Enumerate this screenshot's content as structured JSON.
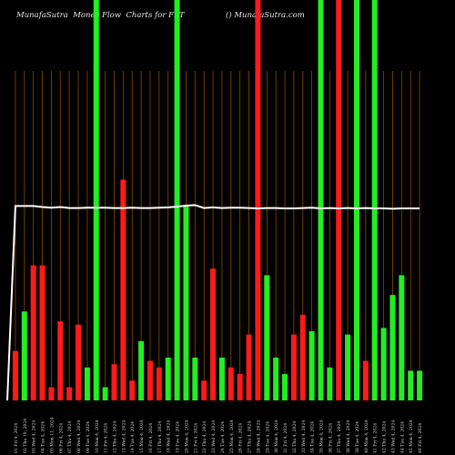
{
  "header": {
    "title": "MunafaSutra  Money Flow  Charts for FFT",
    "watermark": "() MunafaSutra.com"
  },
  "chart_data": {
    "type": "bar",
    "title": "Money Flow Charts for FFT",
    "ylim": [
      0,
      100
    ],
    "colors": {
      "green": "#22ee22",
      "red": "#ff1a1a",
      "line": "#ffffff",
      "grid": "#8b4a00"
    },
    "categories": [
      "01 Fri 4, 2024",
      "02 Thu 10, 2024",
      "03 Wed 4, 2024",
      "04 Tue 4, 2024",
      "05 Mon 11, 2024",
      "06 Fri 4, 2024",
      "07 Thu 4, 2024",
      "08 Wed 4, 2024",
      "09 Tue 4, 2024",
      "10 Mon 4, 2024",
      "11 Fri 4, 2024",
      "12 Thu 4, 2024",
      "13 Wed 4, 2024",
      "14 Tue 4, 2024",
      "15 Mon 4, 2024",
      "16 Fri 4, 2024",
      "17 Thu 4, 2024",
      "18 Wed 4, 2024",
      "19 Tue 4, 2024",
      "20 Mon 4, 2024",
      "21 Fri 4, 2024",
      "22 Thu 4, 2024",
      "23 Wed 4, 2024",
      "24 Tue 4, 2024",
      "25 Mon 4, 2024",
      "26 Fri 4, 2024",
      "27 Thu 4, 2024",
      "28 Wed 4, 2024",
      "29 Tue 4, 2024",
      "30 Mon 4, 2024",
      "31 Fri 4, 2024",
      "32 Thu 4, 2024",
      "33 Wed 4, 2024",
      "34 Tue 4, 2024",
      "35 Mon 4, 2024",
      "36 Fri 4, 2024",
      "37 Thu 4, 2024",
      "38 Wed 4, 2024",
      "39 Tue 4, 2024",
      "40 Mon 4, 2024",
      "41 Fri 4, 2024",
      "42 Thu 4, 2024",
      "43 Wed 4, 2024",
      "44 Tue 4, 2024",
      "45 Mon 4, 2024",
      "46 Fri 4, 2024"
    ],
    "values": [
      15,
      27,
      41,
      41,
      4,
      24,
      4,
      23,
      10,
      100,
      4,
      11,
      67,
      6,
      18,
      12,
      10,
      13,
      100,
      59,
      13,
      6,
      40,
      13,
      10,
      8,
      20,
      100,
      38,
      13,
      8,
      20,
      26,
      21,
      100,
      10,
      100,
      20,
      100,
      12,
      100,
      22,
      32,
      38,
      9,
      9
    ],
    "directions": [
      "red",
      "green",
      "red",
      "red",
      "red",
      "red",
      "red",
      "red",
      "green",
      "green",
      "green",
      "red",
      "red",
      "red",
      "green",
      "red",
      "red",
      "green",
      "green",
      "green",
      "green",
      "red",
      "red",
      "green",
      "red",
      "red",
      "red",
      "red",
      "green",
      "green",
      "green",
      "red",
      "red",
      "green",
      "green",
      "green",
      "red",
      "green",
      "green",
      "red",
      "green",
      "green",
      "green",
      "green",
      "green",
      "green"
    ],
    "line": [
      59,
      59,
      59,
      58.7,
      58.5,
      58.7,
      58.4,
      58.4,
      58.5,
      58.5,
      58.5,
      58.4,
      58.4,
      58.5,
      58.4,
      58.4,
      58.5,
      58.6,
      58.8,
      59.1,
      59.3,
      58.4,
      58.6,
      58.4,
      58.5,
      58.5,
      58.4,
      58.3,
      58.4,
      58.4,
      58.3,
      58.3,
      58.4,
      58.5,
      58.3,
      58.4,
      58.3,
      58.4,
      58.3,
      58.4,
      58.3,
      58.3,
      58.2,
      58.3,
      58.3,
      58.3
    ]
  }
}
